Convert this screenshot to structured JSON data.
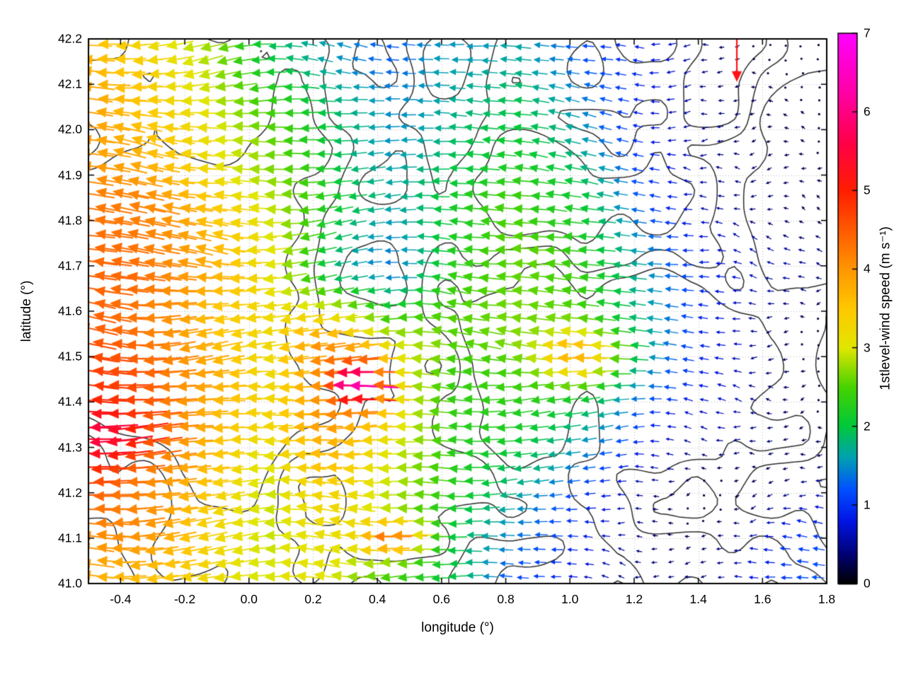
{
  "axes": {
    "x": {
      "label": "longitude (°)",
      "min": -0.5,
      "max": 1.8,
      "tick_values": [
        -0.4,
        -0.2,
        0.0,
        0.2,
        0.4,
        0.6,
        0.8,
        1.0,
        1.2,
        1.4,
        1.6,
        1.8
      ],
      "tick_labels": [
        "-0.4",
        "-0.2",
        "0.0",
        "0.2",
        "0.4",
        "0.6",
        "0.8",
        "1.0",
        "1.2",
        "1.4",
        "1.6",
        "1.8"
      ]
    },
    "y": {
      "label": "latitude (°)",
      "min": 41.0,
      "max": 42.2,
      "tick_values": [
        41.0,
        41.1,
        41.2,
        41.3,
        41.4,
        41.5,
        41.6,
        41.7,
        41.8,
        41.9,
        42.0,
        42.1,
        42.2
      ],
      "tick_labels": [
        "41.0",
        "41.1",
        "41.2",
        "41.3",
        "41.4",
        "41.5",
        "41.6",
        "41.7",
        "41.8",
        "41.9",
        "42.0",
        "42.1",
        "42.2"
      ]
    },
    "grid": "dotted"
  },
  "colorbar": {
    "label": "1stlevel-wind speed (m s⁻¹)",
    "min": 0,
    "max": 7,
    "tick_values": [
      0,
      1,
      2,
      3,
      4,
      5,
      6,
      7
    ],
    "tick_labels": [
      "0",
      "1",
      "2",
      "3",
      "4",
      "5",
      "6",
      "7"
    ],
    "stops": [
      [
        0.0,
        "#000000"
      ],
      [
        0.35,
        "#00006e"
      ],
      [
        0.8,
        "#0014e6"
      ],
      [
        1.2,
        "#0050ff"
      ],
      [
        1.6,
        "#00a0b4"
      ],
      [
        2.0,
        "#00c83c"
      ],
      [
        2.5,
        "#46d200"
      ],
      [
        3.0,
        "#e1e600"
      ],
      [
        3.5,
        "#ffc800"
      ],
      [
        4.0,
        "#ff9600"
      ],
      [
        4.5,
        "#ff5a00"
      ],
      [
        5.0,
        "#ff1e00"
      ],
      [
        5.6,
        "#ff0046"
      ],
      [
        6.2,
        "#ff00a0"
      ],
      [
        7.0,
        "#ff00ff"
      ]
    ]
  },
  "chart_data": {
    "type": "quiver",
    "subtype": "wind vector field over terrain contour map, arrows colored by first-level wind speed, flow predominantly toward the west",
    "x_range": [
      -0.5,
      1.8
    ],
    "y_range": [
      41.0,
      42.2
    ],
    "arrow_grid": {
      "nx": 45,
      "ny": 40
    },
    "base_direction_deg": 180,
    "direction_jitter_deg": 22,
    "speed_field": {
      "comment": "coarse speed control grid (m/s); rows top->bottom lat 42.2->41.0, cols lon -0.5->1.8",
      "lon_nodes": [
        -0.5,
        -0.308,
        -0.117,
        0.075,
        0.267,
        0.458,
        0.65,
        0.842,
        1.033,
        1.225,
        1.417,
        1.608,
        1.8
      ],
      "lat_nodes": [
        42.2,
        42.029,
        41.857,
        41.686,
        41.514,
        41.343,
        41.171,
        41.0
      ],
      "values": [
        [
          3.8,
          3.5,
          3.0,
          2.2,
          1.6,
          1.2,
          1.5,
          1.8,
          1.2,
          0.8,
          0.5,
          0.4,
          0.3
        ],
        [
          3.9,
          3.6,
          3.2,
          2.5,
          1.8,
          1.4,
          1.7,
          2.0,
          1.5,
          1.0,
          0.6,
          0.4,
          0.3
        ],
        [
          4.2,
          4.0,
          3.4,
          2.8,
          2.2,
          1.8,
          2.2,
          2.4,
          2.0,
          1.4,
          0.8,
          0.5,
          0.4
        ],
        [
          4.4,
          4.2,
          3.6,
          3.0,
          2.0,
          1.6,
          2.4,
          2.6,
          2.4,
          1.8,
          1.0,
          0.6,
          0.4
        ],
        [
          4.6,
          4.4,
          3.8,
          3.2,
          4.2,
          3.0,
          2.6,
          2.8,
          2.6,
          1.6,
          0.8,
          0.5,
          0.3
        ],
        [
          4.8,
          4.5,
          4.0,
          3.4,
          4.0,
          3.2,
          2.4,
          2.2,
          1.8,
          1.2,
          0.6,
          0.4,
          0.3
        ],
        [
          4.3,
          4.1,
          3.6,
          3.0,
          3.4,
          2.8,
          2.2,
          1.6,
          1.0,
          0.6,
          0.4,
          0.5,
          0.8
        ],
        [
          4.0,
          3.8,
          3.2,
          2.8,
          3.0,
          2.6,
          2.0,
          1.2,
          0.6,
          0.4,
          0.5,
          0.9,
          1.2
        ]
      ]
    },
    "hotspots": [
      {
        "lon": 0.38,
        "lat": 41.44,
        "amp": 2.8,
        "rlon": 0.07,
        "rlat": 0.05
      },
      {
        "lon": 0.47,
        "lat": 41.1,
        "amp": 1.7,
        "rlon": 0.09,
        "rlat": 0.04
      },
      {
        "lon": 1.05,
        "lat": 41.5,
        "amp": 1.3,
        "rlon": 0.13,
        "rlat": 0.06
      },
      {
        "lon": -0.42,
        "lat": 41.32,
        "amp": 0.8,
        "rlon": 0.12,
        "rlat": 0.07
      }
    ],
    "special_arrows": [
      {
        "lon": 1.52,
        "lat": 42.155,
        "dir_deg": 270,
        "speed": 5.2
      }
    ],
    "contours": {
      "levels": [
        0.45,
        0.55,
        0.65
      ],
      "color": "#2e2e2e",
      "line_width": 1.5
    },
    "seed": 11
  }
}
